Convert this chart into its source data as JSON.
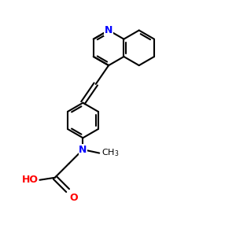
{
  "bg_color": "#ffffff",
  "bond_color": "#000000",
  "N_color": "#0000ff",
  "O_color": "#ff0000",
  "line_width": 1.5,
  "figsize": [
    3.0,
    3.0
  ],
  "dpi": 100,
  "xlim": [
    0,
    10
  ],
  "ylim": [
    0,
    10
  ]
}
